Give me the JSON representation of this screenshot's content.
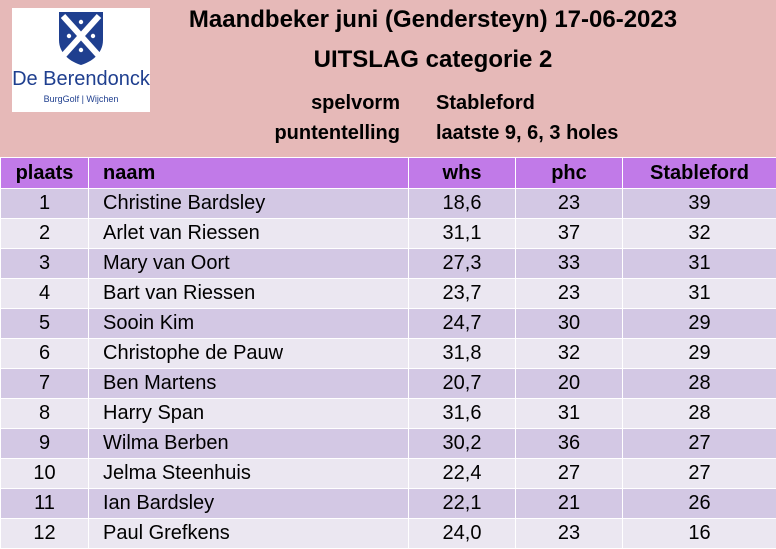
{
  "logo": {
    "name": "De Berendonck",
    "subtitle": "BurgGolf | Wijchen"
  },
  "title": "Maandbeker juni (Gendersteyn) 17-06-2023",
  "subtitle": "UITSLAG categorie 2",
  "meta": [
    {
      "label": "spelvorm",
      "value": "Stableford"
    },
    {
      "label": "puntentelling",
      "value": "laatste 9, 6, 3 holes"
    }
  ],
  "table": {
    "headers": [
      "plaats",
      "naam",
      "whs",
      "phc",
      "Stableford"
    ],
    "rows": [
      [
        "1",
        "Christine Bardsley",
        "18,6",
        "23",
        "39"
      ],
      [
        "2",
        "Arlet van Riessen",
        "31,1",
        "37",
        "32"
      ],
      [
        "3",
        "Mary van Oort",
        "27,3",
        "33",
        "31"
      ],
      [
        "4",
        "Bart van Riessen",
        "23,7",
        "23",
        "31"
      ],
      [
        "5",
        "Sooin Kim",
        "24,7",
        "30",
        "29"
      ],
      [
        "6",
        "Christophe de Pauw",
        "31,8",
        "32",
        "29"
      ],
      [
        "7",
        "Ben Martens",
        "20,7",
        "20",
        "28"
      ],
      [
        "8",
        "Harry Span",
        "31,6",
        "31",
        "28"
      ],
      [
        "9",
        "Wilma Berben",
        "30,2",
        "36",
        "27"
      ],
      [
        "10",
        "Jelma Steenhuis",
        "22,4",
        "27",
        "27"
      ],
      [
        "11",
        "Ian Bardsley",
        "22,1",
        "21",
        "26"
      ],
      [
        "12",
        "Paul Grefkens",
        "24,0",
        "23",
        "16"
      ]
    ]
  },
  "colors": {
    "header_bg": "#e6b9b8",
    "table_header_bg": "#c17ae8",
    "row_odd_bg": "#d3c8e4",
    "row_even_bg": "#ebe7f1",
    "logo_blue": "#1f3f8f"
  }
}
